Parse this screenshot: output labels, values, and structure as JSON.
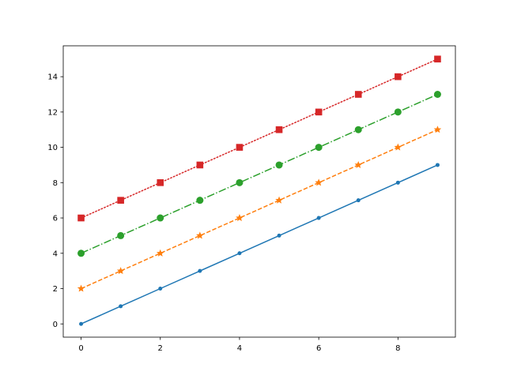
{
  "chart_data": {
    "type": "line",
    "title": "",
    "xlabel": "",
    "ylabel": "",
    "xlim": [
      -0.45,
      9.45
    ],
    "ylim": [
      -0.75,
      15.75
    ],
    "grid": false,
    "x_ticks": [
      0,
      2,
      4,
      6,
      8
    ],
    "y_ticks": [
      0,
      2,
      4,
      6,
      8,
      10,
      12,
      14
    ],
    "x": [
      0,
      1,
      2,
      3,
      4,
      5,
      6,
      7,
      8,
      9
    ],
    "series": [
      {
        "values": [
          0,
          1,
          2,
          3,
          4,
          5,
          6,
          7,
          8,
          9
        ],
        "color": "#1f77b4",
        "line_style": "solid",
        "marker": "point"
      },
      {
        "values": [
          2,
          3,
          4,
          5,
          6,
          7,
          8,
          9,
          10,
          11
        ],
        "color": "#ff7f0e",
        "line_style": "dashed",
        "marker": "star"
      },
      {
        "values": [
          4,
          5,
          6,
          7,
          8,
          9,
          10,
          11,
          12,
          13
        ],
        "color": "#2ca02c",
        "line_style": "dashdot",
        "marker": "circle"
      },
      {
        "values": [
          6,
          7,
          8,
          9,
          10,
          11,
          12,
          13,
          14,
          15
        ],
        "color": "#d62728",
        "line_style": "dotted",
        "marker": "square"
      }
    ]
  }
}
